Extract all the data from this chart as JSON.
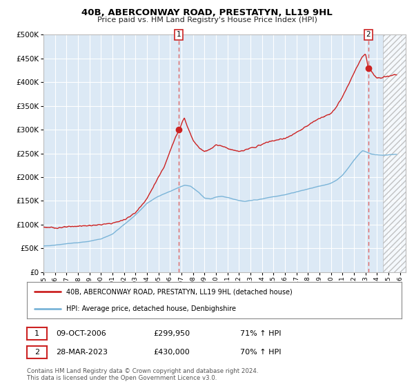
{
  "title": "40B, ABERCONWAY ROAD, PRESTATYN, LL19 9HL",
  "subtitle": "Price paid vs. HM Land Registry's House Price Index (HPI)",
  "legend_line1": "40B, ABERCONWAY ROAD, PRESTATYN, LL19 9HL (detached house)",
  "legend_line2": "HPI: Average price, detached house, Denbighshire",
  "marker1_text": "09-OCT-2006",
  "marker1_amount": "£299,950",
  "marker1_hpi": "71% ↑ HPI",
  "marker1_price": 299950,
  "marker1_x": 2006.7726,
  "marker2_text": "28-MAR-2023",
  "marker2_amount": "£430,000",
  "marker2_hpi": "70% ↑ HPI",
  "marker2_price": 430000,
  "marker2_x": 2023.2411,
  "footnote1": "Contains HM Land Registry data © Crown copyright and database right 2024.",
  "footnote2": "This data is licensed under the Open Government Licence v3.0.",
  "hpi_color": "#7ab4d8",
  "price_color": "#cc2222",
  "marker_color": "#cc2222",
  "vline_color": "#dd6666",
  "plot_bg_color": "#dce9f5",
  "hatch_color": "#cccccc",
  "ylim": [
    0,
    500000
  ],
  "xlim_start": 1995.0,
  "xlim_end": 2026.5,
  "hatch_start": 2024.5,
  "hpi_anchors": [
    [
      1995.0,
      55000
    ],
    [
      1996.0,
      57000
    ],
    [
      1997.0,
      60000
    ],
    [
      1998.0,
      62000
    ],
    [
      1999.0,
      65000
    ],
    [
      2000.0,
      70000
    ],
    [
      2001.0,
      80000
    ],
    [
      2002.0,
      100000
    ],
    [
      2003.0,
      120000
    ],
    [
      2004.0,
      145000
    ],
    [
      2005.0,
      160000
    ],
    [
      2006.0,
      170000
    ],
    [
      2006.75,
      178000
    ],
    [
      2007.3,
      183000
    ],
    [
      2007.8,
      181000
    ],
    [
      2008.5,
      168000
    ],
    [
      2009.0,
      156000
    ],
    [
      2009.5,
      154000
    ],
    [
      2010.0,
      158000
    ],
    [
      2010.5,
      160000
    ],
    [
      2011.0,
      157000
    ],
    [
      2011.5,
      154000
    ],
    [
      2012.0,
      151000
    ],
    [
      2012.5,
      149000
    ],
    [
      2013.0,
      151000
    ],
    [
      2013.5,
      152000
    ],
    [
      2014.0,
      154000
    ],
    [
      2014.5,
      157000
    ],
    [
      2015.0,
      159000
    ],
    [
      2015.5,
      161000
    ],
    [
      2016.0,
      163000
    ],
    [
      2016.5,
      166000
    ],
    [
      2017.0,
      169000
    ],
    [
      2017.5,
      172000
    ],
    [
      2018.0,
      175000
    ],
    [
      2018.5,
      178000
    ],
    [
      2019.0,
      181000
    ],
    [
      2019.5,
      184000
    ],
    [
      2020.0,
      187000
    ],
    [
      2020.5,
      194000
    ],
    [
      2021.0,
      204000
    ],
    [
      2021.5,
      219000
    ],
    [
      2022.0,
      236000
    ],
    [
      2022.5,
      250000
    ],
    [
      2022.75,
      256000
    ],
    [
      2023.0,
      254000
    ],
    [
      2023.25,
      251000
    ],
    [
      2023.5,
      249000
    ],
    [
      2024.0,
      247000
    ],
    [
      2024.5,
      246000
    ],
    [
      2025.0,
      247000
    ],
    [
      2025.5,
      248000
    ]
  ],
  "price_anchors": [
    [
      1995.0,
      95000
    ],
    [
      1996.0,
      93000
    ],
    [
      1997.0,
      95000
    ],
    [
      1998.0,
      97000
    ],
    [
      1999.0,
      98000
    ],
    [
      2000.0,
      100000
    ],
    [
      2001.0,
      103000
    ],
    [
      2002.0,
      110000
    ],
    [
      2003.0,
      125000
    ],
    [
      2004.0,
      155000
    ],
    [
      2005.0,
      200000
    ],
    [
      2005.5,
      222000
    ],
    [
      2006.0,
      255000
    ],
    [
      2006.25,
      270000
    ],
    [
      2006.5,
      285000
    ],
    [
      2006.75,
      297000
    ],
    [
      2006.83,
      299950
    ],
    [
      2007.1,
      318000
    ],
    [
      2007.25,
      325000
    ],
    [
      2007.5,
      308000
    ],
    [
      2007.75,
      293000
    ],
    [
      2008.0,
      278000
    ],
    [
      2008.5,
      263000
    ],
    [
      2009.0,
      254000
    ],
    [
      2009.5,
      259000
    ],
    [
      2010.0,
      268000
    ],
    [
      2010.5,
      266000
    ],
    [
      2011.0,
      261000
    ],
    [
      2011.5,
      257000
    ],
    [
      2012.0,
      254000
    ],
    [
      2012.5,
      257000
    ],
    [
      2013.0,
      261000
    ],
    [
      2013.5,
      264000
    ],
    [
      2014.0,
      269000
    ],
    [
      2014.5,
      274000
    ],
    [
      2015.0,
      277000
    ],
    [
      2015.5,
      279000
    ],
    [
      2016.0,
      282000
    ],
    [
      2016.5,
      287000
    ],
    [
      2017.0,
      294000
    ],
    [
      2017.5,
      301000
    ],
    [
      2018.0,
      309000
    ],
    [
      2018.5,
      317000
    ],
    [
      2019.0,
      324000
    ],
    [
      2019.5,
      329000
    ],
    [
      2020.0,
      334000
    ],
    [
      2020.5,
      349000
    ],
    [
      2021.0,
      369000
    ],
    [
      2021.5,
      394000
    ],
    [
      2022.0,
      419000
    ],
    [
      2022.5,
      444000
    ],
    [
      2022.75,
      454000
    ],
    [
      2023.0,
      459000
    ],
    [
      2023.25,
      430000
    ],
    [
      2023.5,
      424000
    ],
    [
      2023.75,
      414000
    ],
    [
      2024.0,
      409000
    ],
    [
      2024.5,
      411000
    ],
    [
      2025.0,
      413000
    ],
    [
      2025.5,
      416000
    ]
  ]
}
